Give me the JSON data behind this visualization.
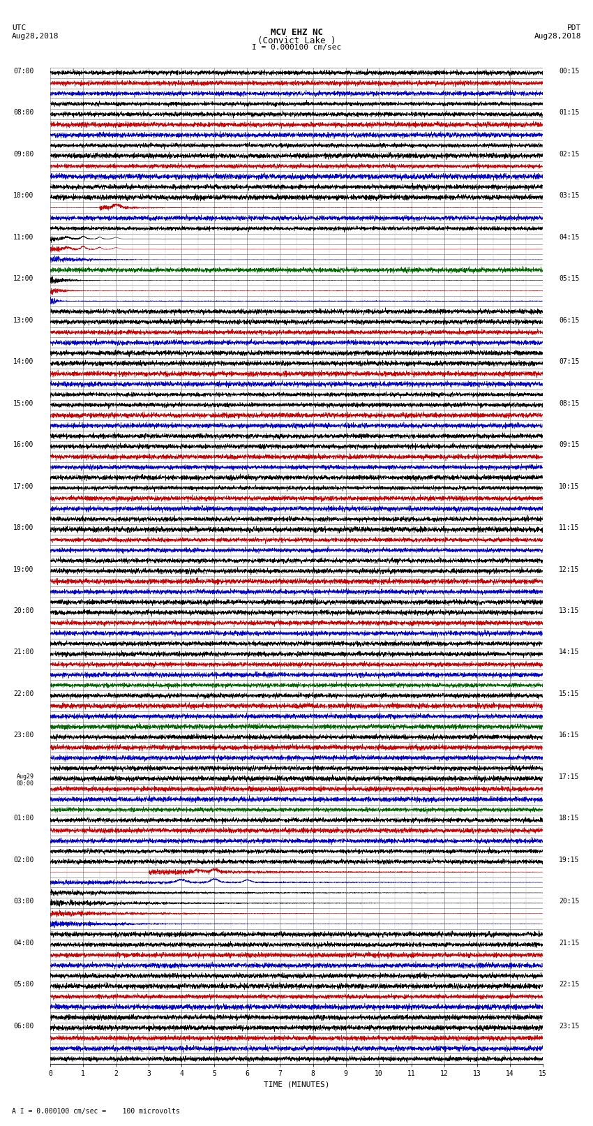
{
  "title_line1": "MCV EHZ NC",
  "title_line2": "(Convict Lake )",
  "title_line3": "I = 0.000100 cm/sec",
  "left_label_top": "UTC",
  "left_label_date": "Aug28,2018",
  "right_label_top": "PDT",
  "right_label_date": "Aug28,2018",
  "xlabel": "TIME (MINUTES)",
  "footer": "A I = 0.000100 cm/sec =    100 microvolts",
  "bg_color": "#ffffff",
  "grid_color": "#aaaaaa",
  "n_rows": 48,
  "n_pts": 4500,
  "row_colors": [
    "black",
    "red",
    "blue",
    "black",
    "black",
    "red",
    "blue",
    "black",
    "black",
    "red",
    "blue",
    "black",
    "black",
    "red",
    "blue",
    "black",
    "black",
    "red",
    "blue",
    "green",
    "black",
    "red",
    "blue",
    "black",
    "black",
    "red",
    "blue",
    "black",
    "black",
    "red",
    "blue",
    "black",
    "black",
    "red",
    "blue",
    "black",
    "black",
    "red",
    "blue",
    "black",
    "black",
    "red",
    "blue",
    "black",
    "black",
    "red",
    "blue",
    "black"
  ],
  "utc_row_labels": {
    "0": "07:00",
    "4": "08:00",
    "8": "09:00",
    "12": "10:00",
    "16": "11:00",
    "20": "12:00",
    "24": "13:00",
    "28": "14:00",
    "32": "15:00",
    "36": "16:00",
    "40": "17:00",
    "44": "18:00",
    "48": "19:00",
    "52": "20:00",
    "56": "21:00",
    "60": "22:00",
    "64": "23:00",
    "68": "Aug29\n00:00",
    "72": "01:00",
    "76": "02:00",
    "80": "03:00",
    "84": "04:00",
    "88": "05:00",
    "92": "06:00"
  },
  "pdt_row_labels": {
    "0": "00:15",
    "4": "01:15",
    "8": "02:15",
    "12": "03:15",
    "16": "04:15",
    "20": "05:15",
    "24": "06:15",
    "28": "07:15",
    "32": "08:15",
    "36": "09:15",
    "40": "10:15",
    "44": "11:15",
    "48": "12:15",
    "52": "13:15",
    "56": "14:15",
    "60": "15:15",
    "64": "16:15",
    "68": "17:15",
    "72": "18:15",
    "76": "19:15",
    "80": "20:15",
    "84": "21:15",
    "88": "22:15",
    "92": "23:15"
  }
}
